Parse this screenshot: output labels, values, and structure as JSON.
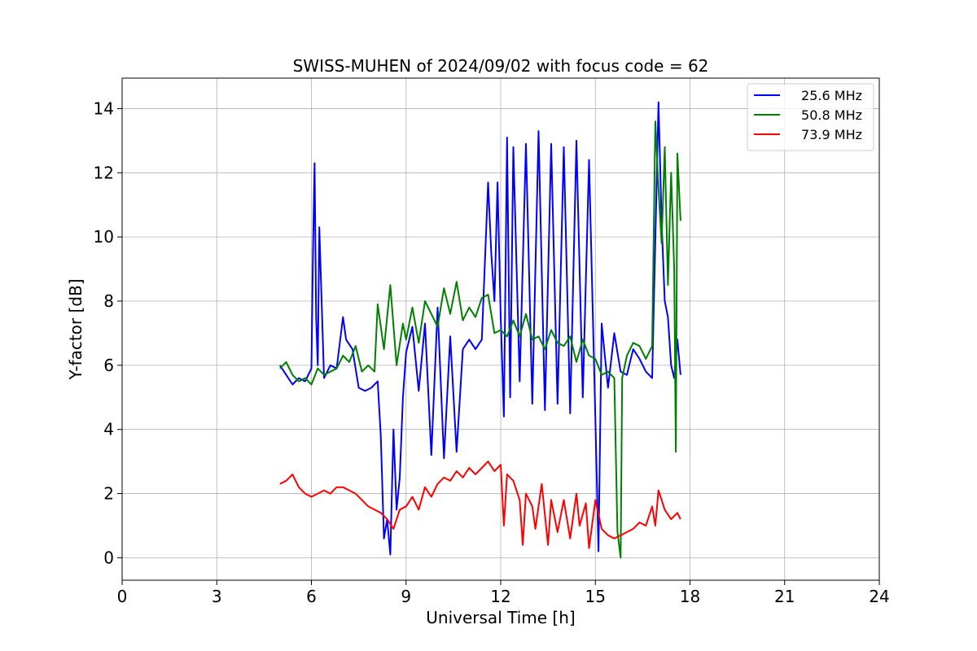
{
  "chart_data": {
    "type": "line",
    "title": "SWISS-MUHEN of 2024/09/02 with focus code = 62",
    "xlabel": "Universal Time [h]",
    "ylabel": "Y-factor [dB]",
    "xlim": [
      0,
      24
    ],
    "ylim": [
      -0.7,
      14.95
    ],
    "xticks": [
      0,
      3,
      6,
      9,
      12,
      15,
      18,
      21,
      24
    ],
    "yticks": [
      0,
      2,
      4,
      6,
      8,
      10,
      12,
      14
    ],
    "grid": true,
    "legend_position": "top-right",
    "series": [
      {
        "name": "25.6 MHz",
        "color": "#0000ff",
        "x": [
          5.0,
          5.2,
          5.4,
          5.6,
          5.8,
          6.0,
          6.05,
          6.1,
          6.15,
          6.2,
          6.25,
          6.4,
          6.6,
          6.8,
          7.0,
          7.1,
          7.3,
          7.5,
          7.7,
          7.9,
          8.1,
          8.2,
          8.3,
          8.4,
          8.5,
          8.6,
          8.7,
          8.8,
          8.9,
          9.0,
          9.2,
          9.4,
          9.6,
          9.8,
          10.0,
          10.2,
          10.4,
          10.6,
          10.8,
          11.0,
          11.2,
          11.4,
          11.6,
          11.7,
          11.8,
          11.9,
          12.0,
          12.1,
          12.2,
          12.3,
          12.4,
          12.6,
          12.8,
          13.0,
          13.2,
          13.4,
          13.6,
          13.8,
          14.0,
          14.2,
          14.4,
          14.6,
          14.8,
          15.0,
          15.1,
          15.2,
          15.4,
          15.6,
          15.8,
          16.0,
          16.2,
          16.4,
          16.6,
          16.8,
          17.0,
          17.1,
          17.2,
          17.3,
          17.4,
          17.5,
          17.6,
          17.7
        ],
        "values": [
          6.0,
          5.7,
          5.4,
          5.6,
          5.5,
          5.9,
          9.5,
          12.3,
          7.5,
          6.0,
          10.3,
          5.6,
          6.0,
          5.9,
          7.5,
          6.8,
          6.5,
          5.3,
          5.2,
          5.3,
          5.5,
          3.8,
          0.6,
          1.2,
          0.1,
          4.0,
          1.5,
          2.5,
          5.0,
          6.4,
          7.2,
          5.2,
          7.3,
          3.2,
          7.8,
          3.1,
          6.9,
          3.3,
          6.5,
          6.8,
          6.5,
          6.8,
          11.7,
          9.5,
          8.0,
          11.7,
          7.5,
          4.4,
          13.1,
          5.0,
          12.8,
          5.5,
          12.9,
          4.8,
          13.3,
          4.6,
          12.9,
          4.8,
          12.8,
          4.5,
          13.0,
          5.0,
          12.4,
          4.3,
          0.2,
          7.3,
          5.3,
          7.0,
          5.8,
          5.7,
          6.5,
          6.2,
          5.8,
          5.6,
          14.2,
          10.5,
          8.0,
          7.5,
          6.0,
          5.6,
          6.8,
          5.7
        ]
      },
      {
        "name": "50.8 MHz",
        "color": "#008000",
        "x": [
          5.0,
          5.2,
          5.4,
          5.6,
          5.8,
          6.0,
          6.2,
          6.4,
          6.6,
          6.8,
          7.0,
          7.2,
          7.4,
          7.6,
          7.8,
          8.0,
          8.1,
          8.3,
          8.5,
          8.7,
          8.9,
          9.0,
          9.2,
          9.4,
          9.6,
          9.8,
          10.0,
          10.2,
          10.4,
          10.6,
          10.8,
          11.0,
          11.2,
          11.4,
          11.6,
          11.8,
          12.0,
          12.2,
          12.4,
          12.6,
          12.8,
          13.0,
          13.2,
          13.4,
          13.6,
          13.8,
          14.0,
          14.2,
          14.4,
          14.6,
          14.8,
          15.0,
          15.2,
          15.4,
          15.6,
          15.7,
          15.8,
          15.85,
          16.0,
          16.2,
          16.4,
          16.6,
          16.8,
          16.9,
          17.0,
          17.1,
          17.2,
          17.3,
          17.4,
          17.5,
          17.55,
          17.6,
          17.7
        ],
        "values": [
          5.9,
          6.1,
          5.7,
          5.5,
          5.6,
          5.4,
          5.9,
          5.7,
          5.8,
          5.9,
          6.3,
          6.1,
          6.6,
          5.8,
          6.0,
          5.8,
          7.9,
          6.5,
          8.5,
          6.0,
          7.3,
          6.8,
          7.8,
          6.7,
          8.0,
          7.6,
          7.2,
          8.4,
          7.6,
          8.6,
          7.4,
          7.8,
          7.5,
          8.1,
          8.2,
          7.0,
          7.1,
          6.9,
          7.4,
          6.9,
          7.6,
          6.8,
          6.9,
          6.5,
          7.1,
          6.7,
          6.6,
          6.9,
          6.1,
          6.8,
          6.3,
          6.2,
          5.7,
          5.8,
          5.6,
          0.8,
          0.0,
          5.6,
          6.3,
          6.7,
          6.6,
          6.2,
          6.6,
          13.6,
          11.5,
          9.8,
          12.8,
          8.5,
          12.0,
          9.0,
          3.3,
          12.6,
          10.5
        ]
      },
      {
        "name": "73.9 MHz",
        "color": "#ff0000",
        "x": [
          5.0,
          5.2,
          5.4,
          5.6,
          5.8,
          6.0,
          6.2,
          6.4,
          6.6,
          6.8,
          7.0,
          7.2,
          7.4,
          7.6,
          7.8,
          8.0,
          8.2,
          8.4,
          8.6,
          8.8,
          9.0,
          9.2,
          9.4,
          9.6,
          9.8,
          10.0,
          10.2,
          10.4,
          10.6,
          10.8,
          11.0,
          11.2,
          11.4,
          11.6,
          11.8,
          12.0,
          12.1,
          12.2,
          12.4,
          12.6,
          12.7,
          12.8,
          13.0,
          13.1,
          13.3,
          13.5,
          13.6,
          13.8,
          14.0,
          14.2,
          14.4,
          14.5,
          14.7,
          14.8,
          15.0,
          15.2,
          15.4,
          15.6,
          15.8,
          16.0,
          16.2,
          16.4,
          16.6,
          16.8,
          16.9,
          17.0,
          17.2,
          17.4,
          17.6,
          17.7
        ],
        "values": [
          2.3,
          2.4,
          2.6,
          2.2,
          2.0,
          1.9,
          2.0,
          2.1,
          2.0,
          2.2,
          2.2,
          2.1,
          2.0,
          1.8,
          1.6,
          1.5,
          1.4,
          1.2,
          0.9,
          1.5,
          1.6,
          1.9,
          1.5,
          2.2,
          1.9,
          2.3,
          2.5,
          2.4,
          2.7,
          2.5,
          2.8,
          2.6,
          2.8,
          3.0,
          2.7,
          2.9,
          1.0,
          2.6,
          2.4,
          1.8,
          0.4,
          2.0,
          1.6,
          0.9,
          2.3,
          0.4,
          1.8,
          0.8,
          1.8,
          0.6,
          2.0,
          1.0,
          1.7,
          0.3,
          1.8,
          0.9,
          0.7,
          0.6,
          0.7,
          0.8,
          0.9,
          1.1,
          1.0,
          1.6,
          1.0,
          2.1,
          1.5,
          1.2,
          1.4,
          1.2
        ]
      }
    ]
  }
}
